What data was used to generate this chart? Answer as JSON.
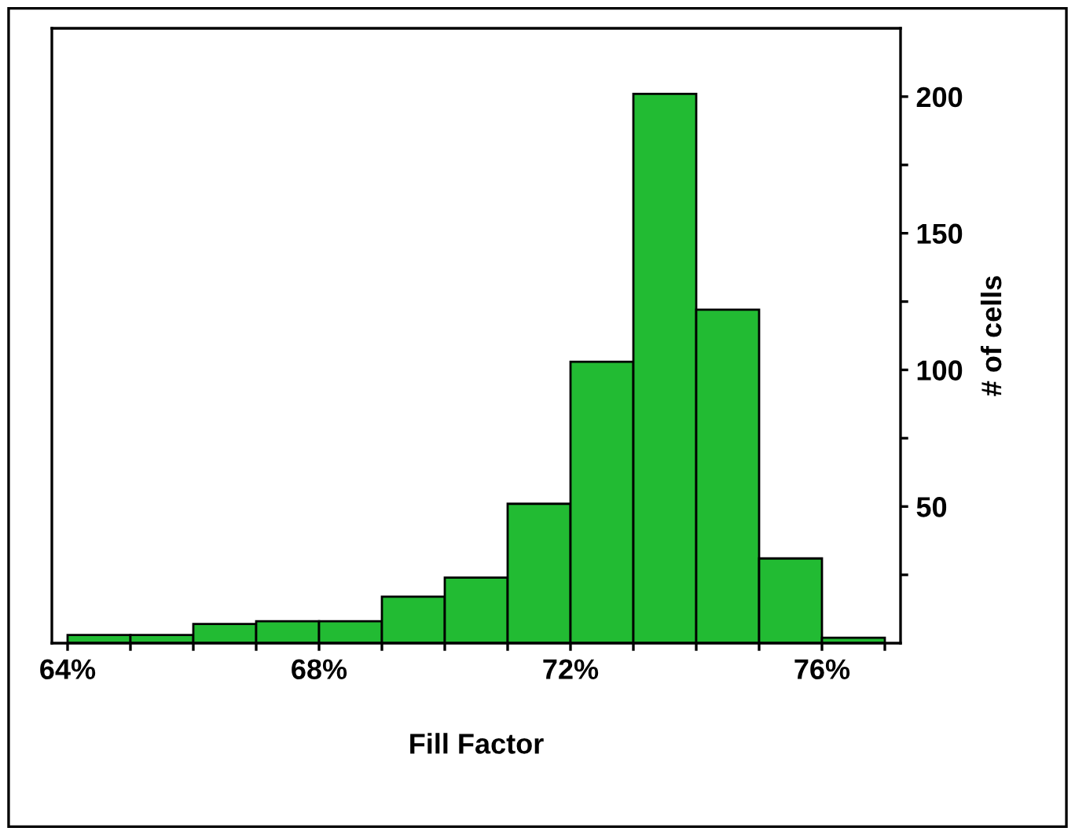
{
  "chart_data": {
    "type": "histogram",
    "xlabel": "Fill Factor",
    "ylabel": "# of cells",
    "bins": [
      64,
      65,
      66,
      67,
      68,
      69,
      70,
      71,
      72,
      73,
      74,
      75,
      76,
      77
    ],
    "values": [
      3,
      3,
      7,
      8,
      8,
      17,
      24,
      51,
      103,
      201,
      122,
      31,
      2
    ],
    "color": "#22bb33",
    "xlim": [
      63.75,
      77.25
    ],
    "ylim": [
      0,
      225
    ],
    "xticks": [
      {
        "value": 64,
        "label": "64%"
      },
      {
        "value": 65,
        "label": null
      },
      {
        "value": 66,
        "label": null
      },
      {
        "value": 67,
        "label": null
      },
      {
        "value": 68,
        "label": "68%"
      },
      {
        "value": 69,
        "label": null
      },
      {
        "value": 70,
        "label": null
      },
      {
        "value": 71,
        "label": null
      },
      {
        "value": 72,
        "label": "72%"
      },
      {
        "value": 73,
        "label": null
      },
      {
        "value": 74,
        "label": null
      },
      {
        "value": 75,
        "label": null
      },
      {
        "value": 76,
        "label": "76%"
      },
      {
        "value": 77,
        "label": null
      }
    ],
    "yticks": [
      {
        "value": 25,
        "label": null
      },
      50,
      {
        "value": 75,
        "label": null
      },
      100,
      {
        "value": 125,
        "label": null
      },
      150,
      {
        "value": 175,
        "label": null
      },
      200
    ],
    "grid": false,
    "legend": false
  }
}
